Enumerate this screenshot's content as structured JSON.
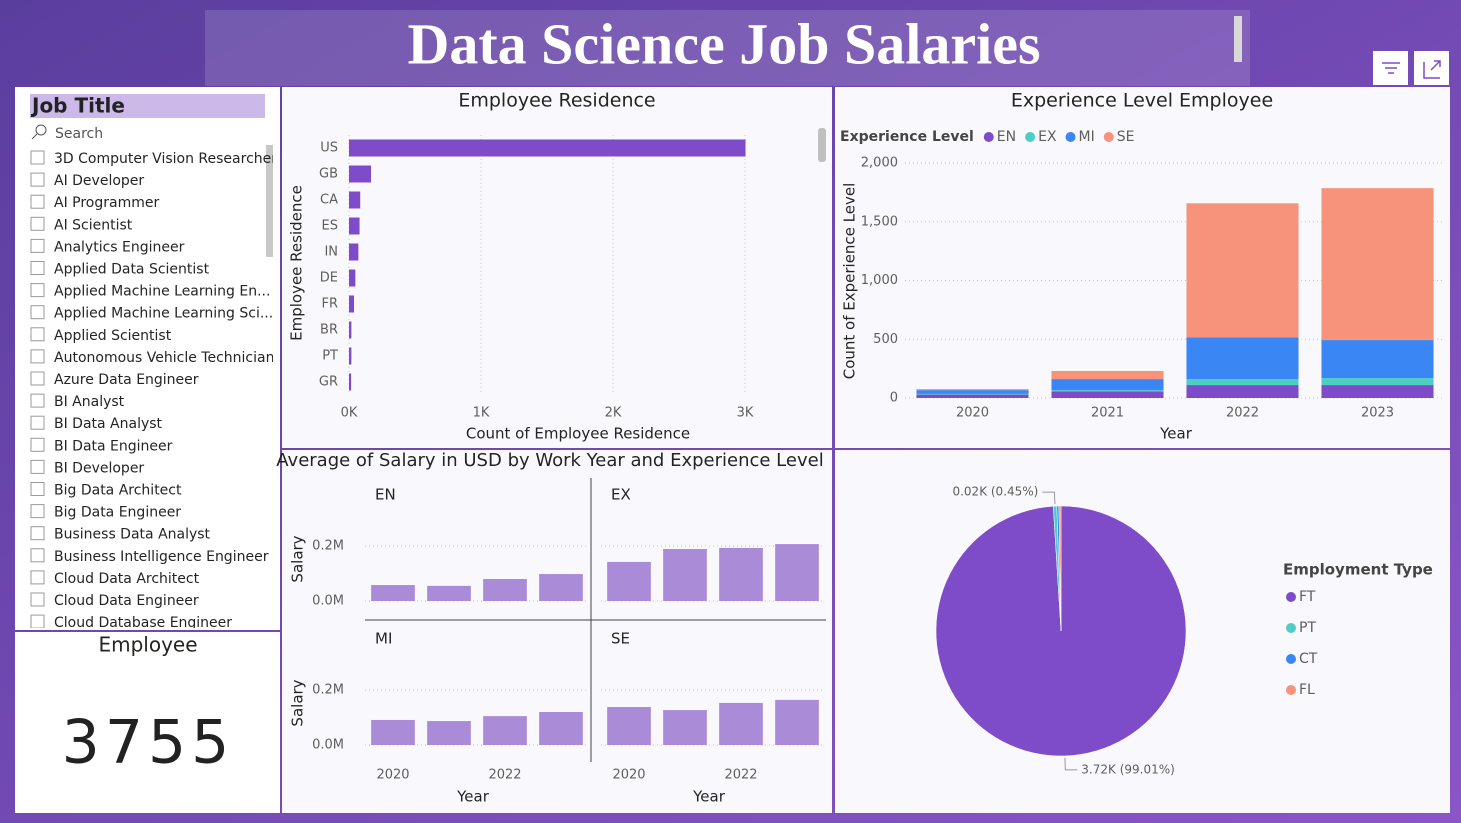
{
  "title": "Data Science Job Salaries",
  "slicer": {
    "title": "Job Title",
    "search": "Search",
    "items": [
      "3D Computer Vision Researcher",
      "AI Developer",
      "AI Programmer",
      "AI Scientist",
      "Analytics Engineer",
      "Applied Data Scientist",
      "Applied Machine Learning En...",
      "Applied Machine Learning Sci...",
      "Applied Scientist",
      "Autonomous Vehicle Technician",
      "Azure Data Engineer",
      "BI Analyst",
      "BI Data Analyst",
      "BI Data Engineer",
      "BI Developer",
      "Big Data Architect",
      "Big Data Engineer",
      "Business Data Analyst",
      "Business Intelligence Engineer",
      "Cloud Data Architect",
      "Cloud Data Engineer",
      "Cloud Database Engineer"
    ]
  },
  "card": {
    "title": "Employee",
    "value": 3755
  },
  "chart_data": [
    {
      "type": "bar",
      "orientation": "horizontal",
      "title": "Employee Residence",
      "x_label": "Count of Employee Residence",
      "y_label": "Employee Residence",
      "categories": [
        "US",
        "GB",
        "CA",
        "ES",
        "IN",
        "DE",
        "FR",
        "BR",
        "PT",
        "GR"
      ],
      "values": [
        3004,
        167,
        85,
        80,
        71,
        48,
        38,
        18,
        18,
        16
      ],
      "color": "#7E4CC8",
      "xlim": [
        0,
        3500
      ],
      "xticks": [
        {
          "value": 0,
          "label": "0K"
        },
        {
          "value": 1000,
          "label": "1K"
        },
        {
          "value": 2000,
          "label": "2K"
        },
        {
          "value": 3000,
          "label": "3K"
        }
      ],
      "grid": true
    },
    {
      "type": "bar",
      "stacked": true,
      "title": "Experience Level Employee",
      "legend_title": "Experience Level",
      "x_label": "Year",
      "y_label": "Count of Experience Level",
      "categories": [
        "2020",
        "2021",
        "2022",
        "2023"
      ],
      "series": [
        {
          "name": "EN",
          "color": "#7E4CC8",
          "values": [
            29,
            55,
            110,
            110
          ]
        },
        {
          "name": "EX",
          "color": "#4ECDC4",
          "values": [
            6,
            11,
            50,
            60
          ]
        },
        {
          "name": "MI",
          "color": "#3B86F5",
          "values": [
            32,
            95,
            357,
            323
          ]
        },
        {
          "name": "SE",
          "color": "#F8937B",
          "values": [
            9,
            69,
            1140,
            1293
          ]
        }
      ],
      "ylim": [
        0,
        2000
      ],
      "yticks": [
        0,
        500,
        {
          "value": 1000,
          "label": "1,000"
        },
        {
          "value": 1500,
          "label": "1,500"
        },
        {
          "value": 2000,
          "label": "2,000"
        }
      ],
      "grid": true,
      "legend": "top-left"
    },
    {
      "type": "bar",
      "small_multiples": true,
      "title": "Average of Salary in USD by Work Year and Experience Level",
      "x_label": "Year",
      "y_label": "Salary",
      "categories": [
        "2020",
        null,
        "2022",
        null
      ],
      "color": "#A98BD8",
      "series": [
        {
          "name": "EN",
          "values": [
            58000,
            55000,
            80000,
            98000
          ]
        },
        {
          "name": "EX",
          "values": [
            142000,
            189000,
            193000,
            207000
          ]
        },
        {
          "name": "MI",
          "values": [
            91000,
            87000,
            105000,
            120000
          ]
        },
        {
          "name": "SE",
          "values": [
            138000,
            127000,
            153000,
            164000
          ]
        }
      ],
      "ylim": [
        0,
        300000
      ],
      "yticks": [
        {
          "value": 0,
          "label": "0.0M"
        },
        {
          "value": 200000,
          "label": "0.2M"
        }
      ],
      "grid": true
    },
    {
      "type": "pie",
      "legend_title": "Employment Type",
      "categories": [
        "FT",
        "PT",
        "CT",
        "FL"
      ],
      "values": [
        3718,
        17,
        10,
        10
      ],
      "value_labels": [
        "3.72K (99.01%)",
        "0.02K (0.45%)",
        null,
        null
      ],
      "colors": [
        "#7E4CC8",
        "#4ECDC4",
        "#3B86F5",
        "#F8937B"
      ],
      "legend": "right"
    }
  ]
}
